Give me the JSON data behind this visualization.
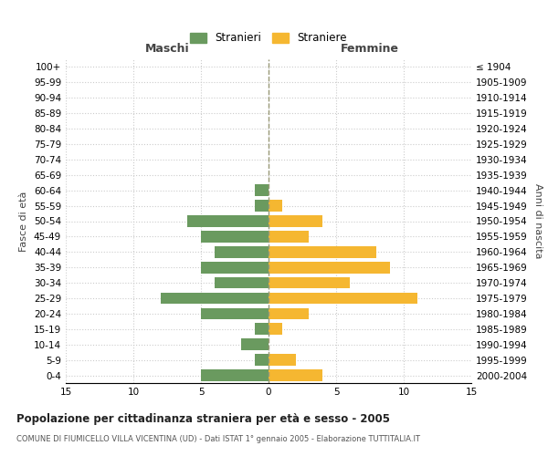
{
  "age_groups": [
    "100+",
    "95-99",
    "90-94",
    "85-89",
    "80-84",
    "75-79",
    "70-74",
    "65-69",
    "60-64",
    "55-59",
    "50-54",
    "45-49",
    "40-44",
    "35-39",
    "30-34",
    "25-29",
    "20-24",
    "15-19",
    "10-14",
    "5-9",
    "0-4"
  ],
  "birth_years": [
    "≤ 1904",
    "1905-1909",
    "1910-1914",
    "1915-1919",
    "1920-1924",
    "1925-1929",
    "1930-1934",
    "1935-1939",
    "1940-1944",
    "1945-1949",
    "1950-1954",
    "1955-1959",
    "1960-1964",
    "1965-1969",
    "1970-1974",
    "1975-1979",
    "1980-1984",
    "1985-1989",
    "1990-1994",
    "1995-1999",
    "2000-2004"
  ],
  "maschi": [
    0,
    0,
    0,
    0,
    0,
    0,
    0,
    0,
    1,
    1,
    6,
    5,
    4,
    5,
    4,
    8,
    5,
    1,
    2,
    1,
    5
  ],
  "femmine": [
    0,
    0,
    0,
    0,
    0,
    0,
    0,
    0,
    0,
    1,
    4,
    3,
    8,
    9,
    6,
    11,
    3,
    1,
    0,
    2,
    4
  ],
  "male_color": "#6a9a5f",
  "female_color": "#f5b731",
  "grid_color": "#cccccc",
  "center_line_color": "#999977",
  "background_color": "#ffffff",
  "title": "Popolazione per cittadinanza straniera per età e sesso - 2005",
  "subtitle": "COMUNE DI FIUMICELLO VILLA VICENTINA (UD) - Dati ISTAT 1° gennaio 2005 - Elaborazione TUTTITALIA.IT",
  "ylabel_left": "Fasce di età",
  "ylabel_right": "Anni di nascita",
  "xlabel_left": "Maschi",
  "xlabel_right": "Femmine",
  "legend_male": "Stranieri",
  "legend_female": "Straniere",
  "xlim": 15
}
